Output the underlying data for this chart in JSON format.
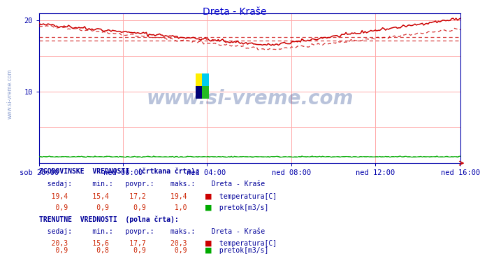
{
  "title": "Dreta - Kraše",
  "title_color": "#0000cc",
  "bg_color": "#ffffff",
  "plot_bg_color": "#ffffff",
  "grid_color": "#ffaaaa",
  "axis_color": "#0000cc",
  "tick_color": "#0000aa",
  "temp_color": "#cc0000",
  "flow_color": "#00aa00",
  "x_labels": [
    "sob 20:00",
    "ned 00:00",
    "ned 04:00",
    "ned 08:00",
    "ned 12:00",
    "ned 16:00"
  ],
  "x_ticks_norm": [
    0.0,
    0.2,
    0.4,
    0.6,
    0.8,
    1.0
  ],
  "total_points": 288,
  "ylim": [
    0,
    21
  ],
  "yticks": [
    10,
    20
  ],
  "avg_hist": 17.2,
  "avg_curr": 17.7,
  "watermark": "www.si-vreme.com",
  "watermark_color": "#1a3a8a",
  "watermark_alpha": 0.3,
  "left_label": "www.si-vreme.com",
  "left_label_color": "#3355aa",
  "logo_colors": [
    "#ffee00",
    "#00ccee",
    "#000077",
    "#22bb22"
  ],
  "text_color": "#000099",
  "val_color": "#cc2200",
  "header1": "ZGODOVINSKE  VREDNOSTI  (črtkana črta):",
  "header2": "TRENUTNE  VREDNOSTI  (polna črta):",
  "col_headers": "  sedaj:     min.:   povpr.:    maks.:    Dreta - Kraše",
  "hist_temp_vals": "   19,4      15,4     17,2      19,4",
  "hist_flow_vals": "    0,9       0,9      0,9       1,0",
  "curr_temp_vals": "   20,3      15,6     17,7      20,3",
  "curr_flow_vals": "    0,9       0,8      0,9       0,9",
  "temp_label": " temperatura[C]",
  "flow_label": " pretok[m3/s]"
}
